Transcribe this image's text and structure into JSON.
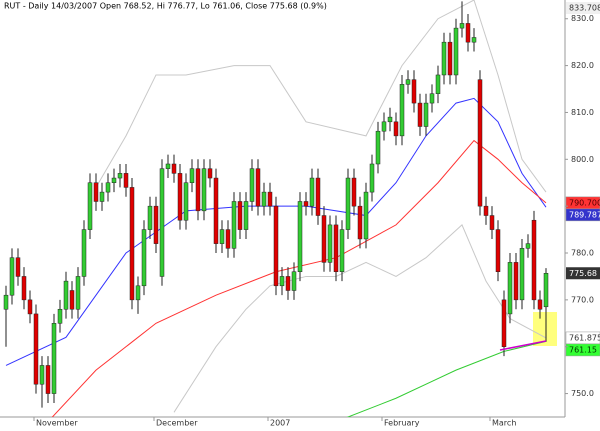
{
  "chart_data": {
    "type": "candlestick",
    "title": "RUT - Daily 14/03/2007 Open 768.52, Hi 776.77, Lo 761.06, Close 775.68 (0.9%)",
    "categories": [
      null,
      null,
      null,
      null,
      null,
      "November",
      null,
      null,
      null,
      null,
      null,
      null,
      null,
      null,
      null,
      null,
      null,
      null,
      null,
      null,
      null,
      null,
      null,
      null,
      null,
      "December",
      null,
      null,
      null,
      null,
      null,
      null,
      null,
      null,
      null,
      null,
      null,
      null,
      null,
      null,
      null,
      null,
      null,
      null,
      "2007",
      null,
      null,
      null,
      null,
      null,
      null,
      null,
      null,
      null,
      null,
      null,
      null,
      null,
      null,
      null,
      null,
      null,
      null,
      "February",
      null,
      null,
      null,
      null,
      null,
      null,
      null,
      null,
      null,
      null,
      null,
      null,
      null,
      null,
      null,
      null,
      null,
      "March",
      null,
      null,
      null,
      null,
      null,
      null,
      null,
      null,
      null
    ],
    "open": [
      768,
      771,
      779,
      775,
      770,
      767,
      752,
      756,
      750,
      765,
      768,
      772,
      768,
      775,
      785,
      795,
      791,
      793,
      795,
      796,
      797,
      794,
      770,
      773,
      785,
      790,
      775,
      798,
      799,
      797,
      787,
      795,
      798,
      789,
      798,
      796,
      782,
      785,
      781,
      791,
      785,
      791,
      798,
      790,
      793,
      790,
      773,
      775,
      772,
      776,
      791,
      790,
      796,
      788,
      778,
      786,
      776,
      785,
      796,
      790,
      783,
      793,
      799,
      806,
      808,
      808,
      805,
      816,
      817,
      812,
      807,
      812,
      814,
      818,
      825,
      818,
      828,
      829,
      825,
      817,
      790,
      788,
      785,
      770,
      767,
      778,
      770,
      781,
      787,
      770,
      768.52
    ],
    "high": [
      773,
      781,
      781,
      777,
      772,
      769,
      758,
      758,
      767,
      770,
      776,
      774,
      777,
      787,
      797,
      797,
      795,
      797,
      798,
      799,
      799,
      796,
      775,
      787,
      792,
      792,
      800,
      801,
      801,
      799,
      797,
      800,
      800,
      800,
      800,
      798,
      787,
      787,
      793,
      793,
      793,
      800,
      800,
      795,
      795,
      792,
      777,
      777,
      778,
      793,
      793,
      798,
      798,
      790,
      788,
      788,
      787,
      798,
      798,
      792,
      795,
      801,
      808,
      810,
      811,
      810,
      818,
      819,
      819,
      814,
      814,
      816,
      820,
      827,
      827,
      830,
      833.708,
      831,
      828,
      819,
      792,
      790,
      787,
      772,
      780,
      780,
      783,
      784,
      789,
      772,
      776.77
    ],
    "low": [
      760,
      769,
      773,
      768,
      765,
      750,
      747,
      748,
      748,
      763,
      766,
      766,
      766,
      773,
      783,
      789,
      789,
      791,
      793,
      794,
      792,
      768,
      767,
      771,
      783,
      780,
      773,
      796,
      795,
      785,
      785,
      793,
      787,
      787,
      794,
      780,
      780,
      779,
      779,
      783,
      783,
      789,
      788,
      788,
      788,
      771,
      771,
      770,
      770,
      774,
      788,
      788,
      786,
      776,
      776,
      774,
      774,
      783,
      788,
      781,
      781,
      791,
      797,
      804,
      806,
      803,
      803,
      814,
      810,
      805,
      805,
      810,
      812,
      816,
      816,
      816,
      826,
      823,
      823,
      788,
      786,
      783,
      774,
      758,
      765,
      768,
      768,
      779,
      768,
      766,
      761.06
    ],
    "close": [
      771,
      779,
      775,
      770,
      767,
      752,
      756,
      750,
      765,
      768,
      774,
      768,
      775,
      785,
      795,
      791,
      793,
      795,
      796,
      797,
      794,
      770,
      773,
      785,
      790,
      782,
      798,
      799,
      797,
      787,
      795,
      798,
      789,
      798,
      796,
      782,
      785,
      781,
      791,
      785,
      791,
      798,
      790,
      793,
      790,
      773,
      775,
      772,
      776,
      791,
      790,
      796,
      788,
      778,
      786,
      776,
      785,
      796,
      790,
      783,
      793,
      799,
      806,
      808,
      809,
      805,
      816,
      817,
      812,
      807,
      812,
      814,
      818,
      825,
      818,
      828,
      829,
      825,
      826,
      790,
      788,
      785,
      776,
      760,
      778,
      770,
      781,
      782,
      770,
      768,
      775.68
    ],
    "close_label": "775.68",
    "up_color": "#33cc33",
    "down_color": "#e00000",
    "ylim": [
      745,
      834
    ],
    "yticks": [
      {
        "value": 750,
        "label": "750.0"
      },
      {
        "value": 760,
        "label": "760.0"
      },
      {
        "value": 770,
        "label": "770.0"
      },
      {
        "value": 780,
        "label": "780.0"
      },
      {
        "value": 790,
        "label": "790.0"
      },
      {
        "value": 800,
        "label": "800.0"
      },
      {
        "value": 810,
        "label": "810.0"
      },
      {
        "value": 820,
        "label": "820.0"
      },
      {
        "value": 830,
        "label": "830.0"
      }
    ],
    "high_label": {
      "value": 833.708,
      "label": "833.708"
    },
    "overlays": [
      {
        "color": "#c8c8c8",
        "x": [
          15,
          20,
          25,
          30,
          38,
          44,
          50,
          60,
          66,
          72,
          78,
          82,
          86,
          90
        ],
        "values": [
          794,
          805,
          818,
          818,
          820,
          820,
          808,
          805,
          820,
          830,
          834,
          818,
          800,
          793
        ]
      },
      {
        "color": "#c8c8c8",
        "x": [
          28,
          35,
          40,
          44,
          50,
          55,
          60,
          65,
          70,
          76,
          80,
          84,
          90
        ],
        "values": [
          746,
          760,
          768,
          773,
          775,
          775,
          778,
          775,
          779,
          786,
          774,
          766,
          761.875
        ],
        "value_label": "761.875",
        "label_fill": "#ffffff",
        "label_text": "#333333"
      },
      {
        "color": "#3333ff",
        "x": [
          0,
          10,
          20,
          30,
          40,
          50,
          60,
          65,
          70,
          75,
          78,
          82,
          86,
          90
        ],
        "values": [
          756,
          762,
          780,
          789,
          790,
          790,
          788,
          795,
          805,
          812,
          813,
          808,
          797,
          789.787
        ],
        "value_label": "789.787",
        "label_fill": "#3333cc",
        "label_text": "#ffffff"
      },
      {
        "color": "#ff3333",
        "x": [
          7,
          15,
          25,
          35,
          45,
          55,
          65,
          72,
          78,
          82,
          86,
          90
        ],
        "values": [
          744,
          755,
          765,
          771,
          776,
          779,
          786,
          795,
          804,
          800,
          795,
          790.7
        ],
        "value_label": "790.700",
        "label_fill": "#ff3333",
        "label_text": "#550000"
      },
      {
        "color": "#33cc33",
        "x": [
          55,
          65,
          75,
          83,
          90
        ],
        "values": [
          744,
          749,
          755,
          759,
          761.15
        ],
        "value_label": "761.15",
        "label_fill": "#33ff33",
        "label_text": "#003300"
      }
    ]
  }
}
